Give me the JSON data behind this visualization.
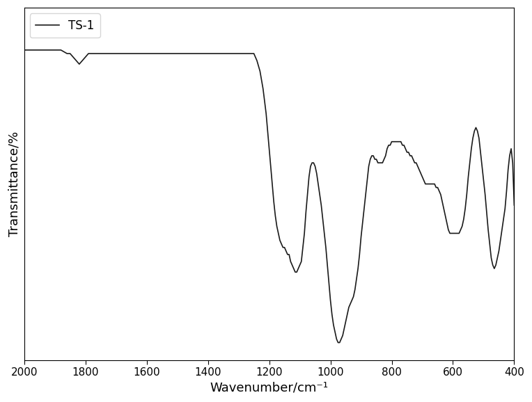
{
  "title": "",
  "xlabel": "Wavenumber/cm⁻¹",
  "ylabel": "Transmittance/%",
  "legend_label": "TS-1",
  "line_color": "#1a1a1a",
  "line_width": 1.2,
  "xlim": [
    2000,
    400
  ],
  "background_color": "#ffffff",
  "xticks": [
    2000,
    1800,
    1600,
    1400,
    1200,
    1000,
    800,
    600,
    400
  ],
  "wavenumbers": [
    2000,
    1980,
    1960,
    1940,
    1920,
    1900,
    1880,
    1860,
    1850,
    1840,
    1830,
    1820,
    1810,
    1800,
    1790,
    1780,
    1770,
    1760,
    1750,
    1740,
    1730,
    1720,
    1710,
    1700,
    1690,
    1680,
    1670,
    1660,
    1650,
    1640,
    1630,
    1620,
    1610,
    1600,
    1590,
    1580,
    1570,
    1560,
    1550,
    1540,
    1530,
    1520,
    1510,
    1500,
    1490,
    1480,
    1470,
    1460,
    1450,
    1440,
    1430,
    1420,
    1410,
    1400,
    1390,
    1380,
    1370,
    1360,
    1350,
    1340,
    1330,
    1320,
    1310,
    1300,
    1290,
    1280,
    1270,
    1260,
    1250,
    1240,
    1230,
    1220,
    1210,
    1200,
    1195,
    1190,
    1185,
    1180,
    1175,
    1170,
    1165,
    1160,
    1155,
    1150,
    1145,
    1140,
    1135,
    1130,
    1125,
    1120,
    1115,
    1110,
    1105,
    1100,
    1095,
    1090,
    1085,
    1080,
    1075,
    1070,
    1065,
    1060,
    1055,
    1050,
    1045,
    1040,
    1035,
    1030,
    1025,
    1020,
    1015,
    1010,
    1005,
    1000,
    995,
    990,
    985,
    980,
    975,
    970,
    965,
    960,
    955,
    950,
    945,
    940,
    935,
    930,
    925,
    920,
    915,
    910,
    905,
    900,
    895,
    890,
    885,
    880,
    875,
    870,
    865,
    860,
    855,
    850,
    845,
    840,
    835,
    830,
    825,
    820,
    815,
    810,
    805,
    800,
    795,
    790,
    785,
    780,
    775,
    770,
    765,
    760,
    755,
    750,
    745,
    740,
    735,
    730,
    725,
    720,
    715,
    710,
    705,
    700,
    695,
    690,
    685,
    680,
    675,
    670,
    665,
    660,
    655,
    650,
    645,
    640,
    635,
    630,
    625,
    620,
    615,
    610,
    605,
    600,
    595,
    590,
    585,
    580,
    575,
    570,
    565,
    560,
    555,
    550,
    545,
    540,
    535,
    530,
    525,
    520,
    515,
    510,
    505,
    500,
    495,
    490,
    485,
    480,
    475,
    470,
    465,
    460,
    455,
    450,
    445,
    440,
    435,
    430,
    425,
    420,
    415,
    410,
    405,
    400
  ],
  "transmittance": [
    88,
    88,
    88,
    88,
    88,
    88,
    88,
    87,
    87,
    86,
    85,
    84,
    85,
    86,
    87,
    87,
    87,
    87,
    87,
    87,
    87,
    87,
    87,
    87,
    87,
    87,
    87,
    87,
    87,
    87,
    87,
    87,
    87,
    87,
    87,
    87,
    87,
    87,
    87,
    87,
    87,
    87,
    87,
    87,
    87,
    87,
    87,
    87,
    87,
    87,
    87,
    87,
    87,
    87,
    87,
    87,
    87,
    87,
    87,
    87,
    87,
    87,
    87,
    87,
    87,
    87,
    87,
    87,
    87,
    85,
    82,
    77,
    70,
    60,
    55,
    50,
    45,
    41,
    38,
    36,
    34,
    33,
    32,
    32,
    31,
    30,
    30,
    28,
    27,
    26,
    25,
    25,
    26,
    27,
    28,
    32,
    36,
    42,
    47,
    52,
    55,
    56,
    56,
    55,
    53,
    50,
    47,
    44,
    40,
    36,
    32,
    27,
    22,
    17,
    13,
    10,
    8,
    6,
    5,
    5,
    6,
    7,
    9,
    11,
    13,
    15,
    16,
    17,
    18,
    20,
    23,
    26,
    30,
    35,
    39,
    43,
    47,
    51,
    55,
    57,
    58,
    58,
    57,
    57,
    56,
    56,
    56,
    56,
    57,
    58,
    60,
    61,
    61,
    62,
    62,
    62,
    62,
    62,
    62,
    62,
    61,
    61,
    60,
    59,
    59,
    58,
    58,
    57,
    56,
    56,
    55,
    54,
    53,
    52,
    51,
    50,
    50,
    50,
    50,
    50,
    50,
    50,
    49,
    49,
    48,
    47,
    45,
    43,
    41,
    39,
    37,
    36,
    36,
    36,
    36,
    36,
    36,
    36,
    37,
    38,
    40,
    43,
    47,
    52,
    56,
    60,
    63,
    65,
    66,
    65,
    63,
    59,
    55,
    51,
    47,
    42,
    37,
    33,
    29,
    27,
    26,
    27,
    29,
    31,
    34,
    37,
    40,
    43,
    48,
    54,
    58,
    60,
    56,
    44
  ]
}
